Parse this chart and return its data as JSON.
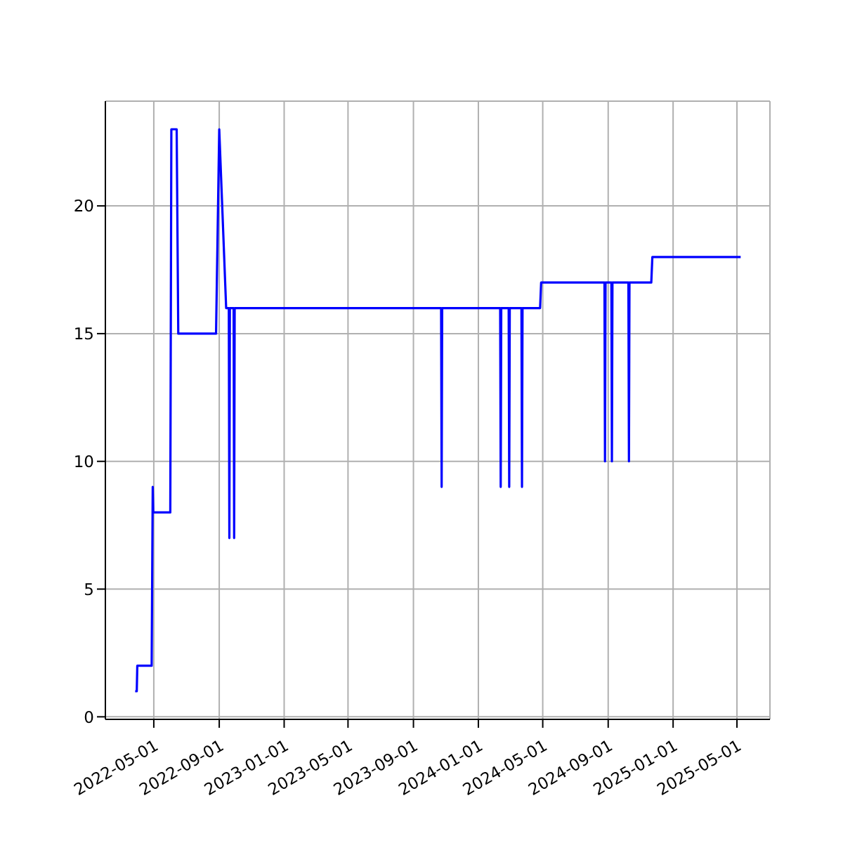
{
  "chart_data": {
    "type": "line",
    "x": [
      "2022-03-27",
      "2022-03-30",
      "2022-03-31",
      "2022-04-27",
      "2022-04-29",
      "2022-04-30",
      "2022-05-02",
      "2022-06-01",
      "2022-06-03",
      "2022-06-13",
      "2022-06-16",
      "2022-08-26",
      "2022-09-01",
      "2022-09-14",
      "2022-09-19",
      "2022-09-20",
      "2022-09-21",
      "2022-09-28",
      "2022-09-29",
      "2022-09-30",
      "2023-10-23",
      "2023-10-24",
      "2023-10-25",
      "2024-02-11",
      "2024-02-12",
      "2024-02-13",
      "2024-02-27",
      "2024-02-28",
      "2024-02-29",
      "2024-03-22",
      "2024-03-23",
      "2024-03-24",
      "2024-04-26",
      "2024-04-28",
      "2024-08-25",
      "2024-08-26",
      "2024-08-27",
      "2024-09-07",
      "2024-09-08",
      "2024-09-09",
      "2024-10-09",
      "2024-10-10",
      "2024-10-11",
      "2024-11-21",
      "2024-11-23",
      "2025-05-08"
    ],
    "series": [
      {
        "color": "#0000ff",
        "values": [
          1,
          1,
          2,
          2,
          9,
          8,
          8,
          8,
          23,
          23,
          15,
          15,
          23,
          16,
          16,
          7,
          16,
          16,
          7,
          16,
          16,
          9,
          16,
          16,
          9,
          16,
          16,
          9,
          16,
          16,
          9,
          16,
          16,
          17,
          17,
          10,
          17,
          17,
          10,
          17,
          17,
          10,
          17,
          17,
          18,
          18
        ]
      }
    ],
    "xlim": [
      "2022-01-30",
      "2025-07-02"
    ],
    "ylim": [
      -0.1,
      24.1
    ],
    "xticks": [
      "2022-05-01",
      "2022-09-01",
      "2023-01-01",
      "2023-05-01",
      "2023-09-01",
      "2024-01-01",
      "2024-05-01",
      "2024-09-01",
      "2025-01-01",
      "2025-05-01"
    ],
    "yticks": [
      0,
      5,
      10,
      15,
      20
    ],
    "grid": true,
    "marker": "none",
    "line_style": "solid"
  }
}
